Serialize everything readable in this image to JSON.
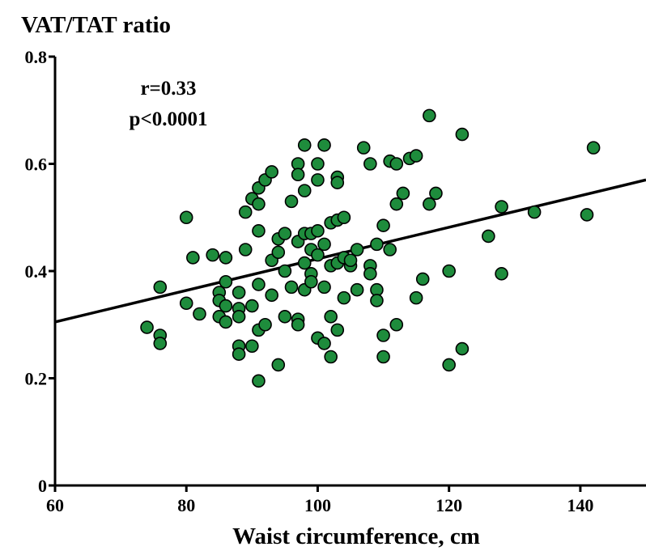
{
  "chart_data": {
    "type": "scatter",
    "ylabel": "VAT/TAT ratio",
    "xlabel": "Waist circumference, cm",
    "annotations": {
      "r": "r=0.33",
      "p": "p<0.0001"
    },
    "xlim": [
      60,
      150
    ],
    "ylim": [
      0,
      0.8
    ],
    "x_ticks": [
      60,
      80,
      100,
      120,
      140
    ],
    "x_tick_labels": [
      "60",
      "80",
      "100",
      "120",
      "140"
    ],
    "y_ticks": [
      0,
      0.2,
      0.4,
      0.6,
      0.8
    ],
    "y_tick_labels": [
      "0",
      "0.2",
      "0.4",
      "0.6",
      "0.8"
    ],
    "regression_line": {
      "x": [
        60,
        150
      ],
      "y": [
        0.305,
        0.57
      ]
    },
    "marker_color": "#1e8c3c",
    "marker_edge_color": "#000000",
    "points": [
      [
        74,
        0.295
      ],
      [
        76,
        0.37
      ],
      [
        76,
        0.28
      ],
      [
        76,
        0.265
      ],
      [
        80,
        0.5
      ],
      [
        80,
        0.34
      ],
      [
        81,
        0.425
      ],
      [
        82,
        0.32
      ],
      [
        84,
        0.43
      ],
      [
        85,
        0.36
      ],
      [
        85,
        0.345
      ],
      [
        85,
        0.315
      ],
      [
        86,
        0.425
      ],
      [
        86,
        0.38
      ],
      [
        86,
        0.335
      ],
      [
        86,
        0.305
      ],
      [
        88,
        0.36
      ],
      [
        88,
        0.33
      ],
      [
        88,
        0.315
      ],
      [
        88,
        0.26
      ],
      [
        88,
        0.245
      ],
      [
        89,
        0.51
      ],
      [
        89,
        0.44
      ],
      [
        90,
        0.535
      ],
      [
        90,
        0.335
      ],
      [
        90,
        0.26
      ],
      [
        91,
        0.555
      ],
      [
        91,
        0.525
      ],
      [
        91,
        0.475
      ],
      [
        91,
        0.375
      ],
      [
        91,
        0.29
      ],
      [
        91,
        0.195
      ],
      [
        92,
        0.57
      ],
      [
        92,
        0.3
      ],
      [
        93,
        0.585
      ],
      [
        93,
        0.42
      ],
      [
        93,
        0.355
      ],
      [
        94,
        0.46
      ],
      [
        94,
        0.435
      ],
      [
        94,
        0.225
      ],
      [
        95,
        0.47
      ],
      [
        95,
        0.4
      ],
      [
        95,
        0.315
      ],
      [
        96,
        0.53
      ],
      [
        96,
        0.37
      ],
      [
        97,
        0.6
      ],
      [
        97,
        0.58
      ],
      [
        97,
        0.455
      ],
      [
        97,
        0.31
      ],
      [
        97,
        0.3
      ],
      [
        98,
        0.635
      ],
      [
        98,
        0.55
      ],
      [
        98,
        0.47
      ],
      [
        98,
        0.415
      ],
      [
        98,
        0.365
      ],
      [
        99,
        0.47
      ],
      [
        99,
        0.44
      ],
      [
        99,
        0.395
      ],
      [
        99,
        0.38
      ],
      [
        100,
        0.6
      ],
      [
        100,
        0.57
      ],
      [
        100,
        0.475
      ],
      [
        100,
        0.43
      ],
      [
        100,
        0.275
      ],
      [
        101,
        0.635
      ],
      [
        101,
        0.45
      ],
      [
        101,
        0.37
      ],
      [
        101,
        0.265
      ],
      [
        102,
        0.49
      ],
      [
        102,
        0.41
      ],
      [
        102,
        0.315
      ],
      [
        102,
        0.24
      ],
      [
        103,
        0.575
      ],
      [
        103,
        0.565
      ],
      [
        103,
        0.495
      ],
      [
        103,
        0.415
      ],
      [
        103,
        0.29
      ],
      [
        104,
        0.5
      ],
      [
        104,
        0.425
      ],
      [
        104,
        0.35
      ],
      [
        105,
        0.41
      ],
      [
        105,
        0.42
      ],
      [
        106,
        0.44
      ],
      [
        106,
        0.365
      ],
      [
        107,
        0.63
      ],
      [
        108,
        0.6
      ],
      [
        108,
        0.41
      ],
      [
        108,
        0.395
      ],
      [
        109,
        0.45
      ],
      [
        109,
        0.365
      ],
      [
        109,
        0.345
      ],
      [
        110,
        0.485
      ],
      [
        110,
        0.28
      ],
      [
        110,
        0.24
      ],
      [
        111,
        0.605
      ],
      [
        111,
        0.44
      ],
      [
        112,
        0.6
      ],
      [
        112,
        0.525
      ],
      [
        112,
        0.3
      ],
      [
        113,
        0.545
      ],
      [
        114,
        0.61
      ],
      [
        115,
        0.615
      ],
      [
        115,
        0.35
      ],
      [
        116,
        0.385
      ],
      [
        117,
        0.69
      ],
      [
        117,
        0.525
      ],
      [
        118,
        0.545
      ],
      [
        120,
        0.4
      ],
      [
        120,
        0.225
      ],
      [
        122,
        0.655
      ],
      [
        122,
        0.255
      ],
      [
        126,
        0.465
      ],
      [
        128,
        0.52
      ],
      [
        128,
        0.395
      ],
      [
        133,
        0.51
      ],
      [
        141,
        0.505
      ],
      [
        142,
        0.63
      ]
    ]
  }
}
